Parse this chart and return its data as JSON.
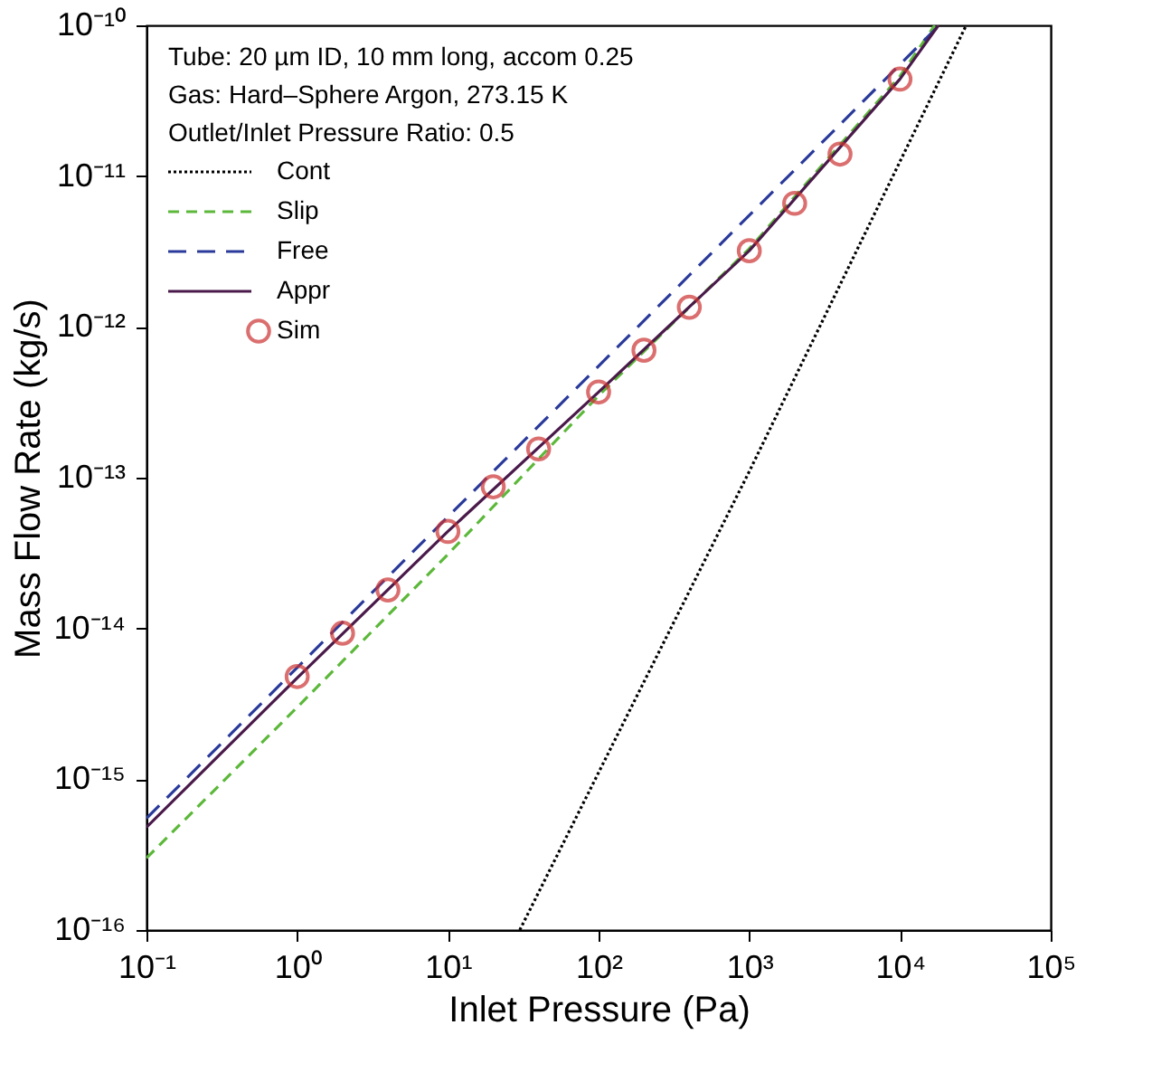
{
  "chart_data": {
    "type": "line",
    "xlabel": "Inlet Pressure (Pa)",
    "ylabel": "Mass Flow Rate (kg/s)",
    "log": "xy",
    "grid": false,
    "legend": "top left",
    "xlim": [
      0.1,
      100000
    ],
    "ylim": [
      1e-16,
      1e-10
    ],
    "xticks": [
      {
        "value": 0.1,
        "label": "10⁻¹"
      },
      {
        "value": 1,
        "label": "10⁰"
      },
      {
        "value": 10,
        "label": "10¹"
      },
      {
        "value": 100,
        "label": "10²"
      },
      {
        "value": 1000,
        "label": "10³"
      },
      {
        "value": 10000,
        "label": "10⁴"
      },
      {
        "value": 100000,
        "label": "10⁵"
      }
    ],
    "yticks": [
      {
        "value": 1e-16,
        "label": "10⁻¹⁶"
      },
      {
        "value": 1e-15,
        "label": "10⁻¹⁵"
      },
      {
        "value": 1e-14,
        "label": "10⁻¹⁴"
      },
      {
        "value": 1e-13,
        "label": "10⁻¹³"
      },
      {
        "value": 1e-12,
        "label": "10⁻¹²"
      },
      {
        "value": 1e-11,
        "label": "10⁻¹¹"
      },
      {
        "value": 1e-10,
        "label": "10⁻¹⁰"
      }
    ],
    "annotations": [
      "Tube: 20 µm ID, 10 mm long, accom 0.25",
      "Gas: Hard–Sphere Argon, 273.15 K",
      "Outlet/Inlet Pressure Ratio: 0.5"
    ],
    "series": [
      {
        "name": "Cont",
        "color": "#000000",
        "line_style": "dotted",
        "marker": "none",
        "x": [
          30,
          1000,
          27500
        ],
        "values": [
          1e-16,
          1.1e-13,
          1e-10
        ]
      },
      {
        "name": "Slip",
        "color": "#5cb83a",
        "line_style": "dashed",
        "marker": "none",
        "x": [
          0.1,
          1,
          10,
          100,
          1000,
          10000,
          17000
        ],
        "values": [
          3e-16,
          3e-15,
          3.1e-14,
          3.5e-13,
          3.3e-12,
          4.6e-11,
          1e-10
        ]
      },
      {
        "name": "Free",
        "color": "#2a3a9a",
        "line_style": "dashed",
        "marker": "none",
        "x": [
          0.1,
          18000
        ],
        "values": [
          5.5e-16,
          9.9e-11
        ]
      },
      {
        "name": "Appr",
        "color": "#4a1a4a",
        "line_style": "solid",
        "marker": "none",
        "x": [
          0.1,
          1,
          10,
          100,
          1000,
          10000,
          18000
        ],
        "values": [
          4.8e-16,
          4.7e-15,
          4.4e-14,
          3.7e-13,
          3.2e-12,
          4.4e-11,
          1e-10
        ]
      },
      {
        "name": "Sim",
        "type": "scatter",
        "color": "#cc3333",
        "marker": "circle",
        "x": [
          1,
          2,
          4,
          10,
          20,
          40,
          100,
          200,
          400,
          1000,
          2000,
          4000,
          10000
        ],
        "values": [
          4.8e-15,
          9.3e-15,
          1.8e-14,
          4.4e-14,
          8.7e-14,
          1.55e-13,
          3.7e-13,
          7e-13,
          1.35e-12,
          3.2e-12,
          6.6e-12,
          1.4e-11,
          4.4e-11
        ]
      }
    ]
  }
}
